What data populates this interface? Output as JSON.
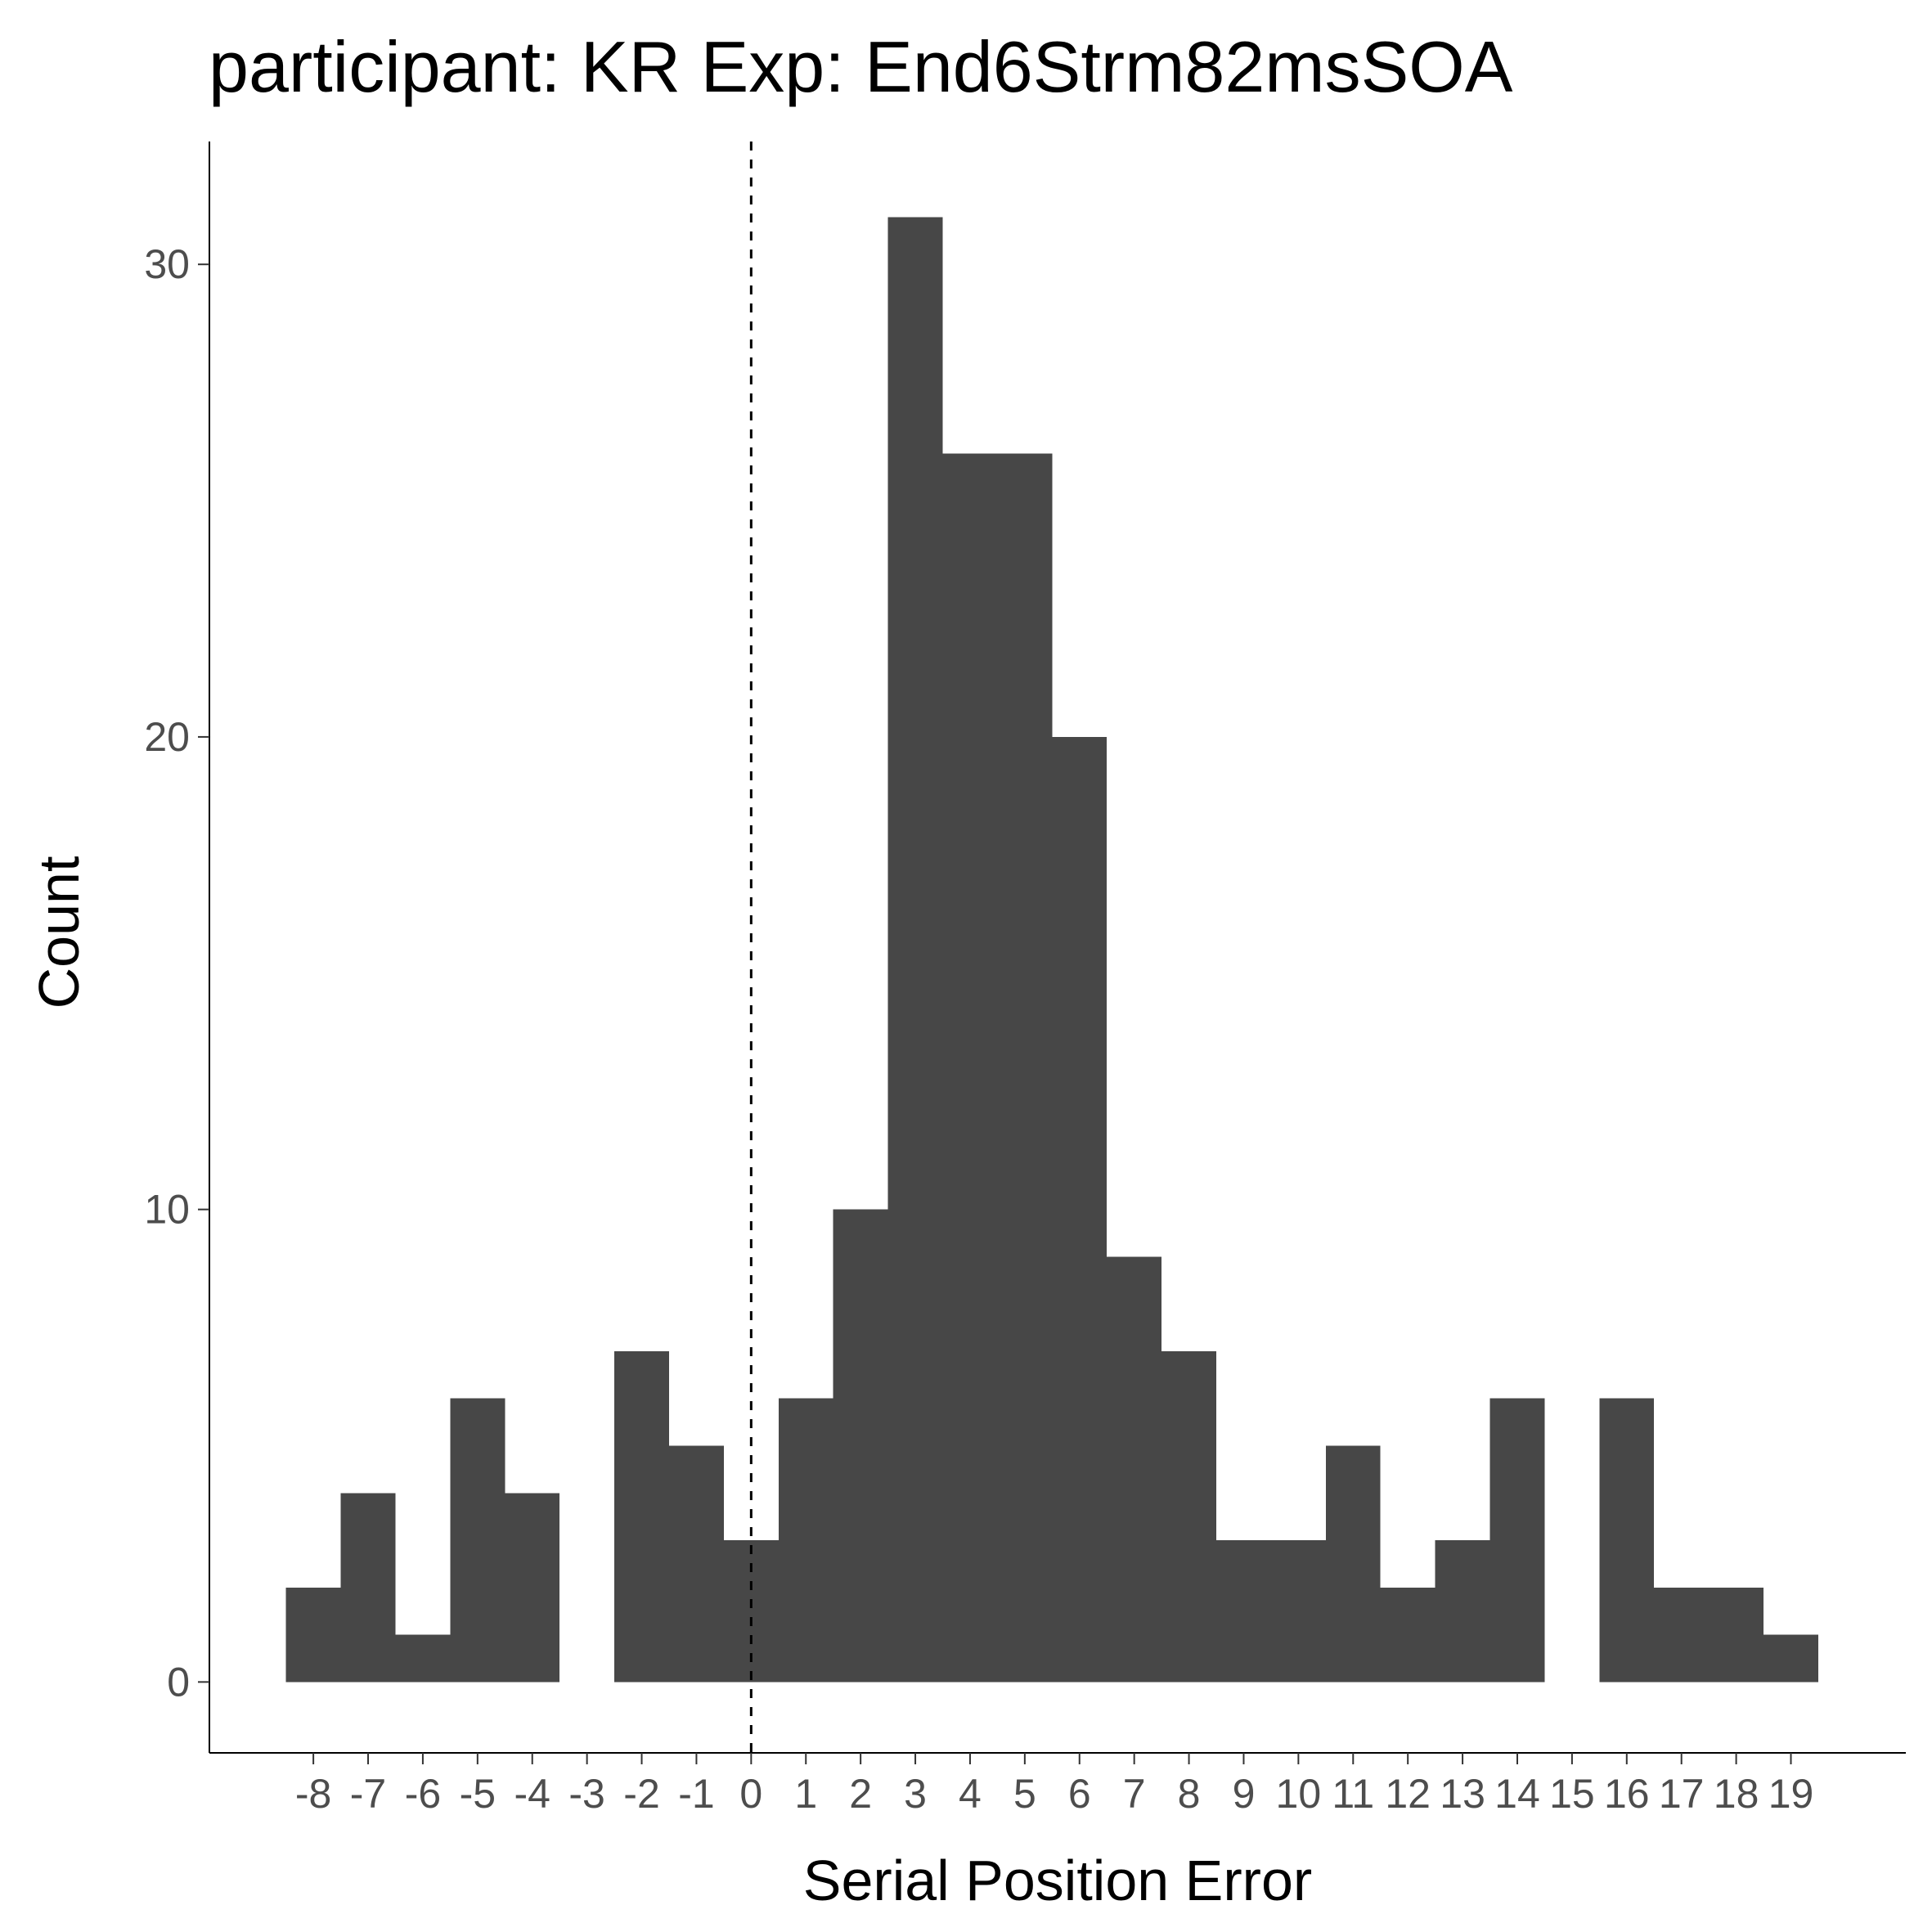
{
  "chart_data": {
    "type": "bar",
    "title": "participant: KR Exp: End6Strm82msSOA",
    "xlabel": "Serial Position Error",
    "ylabel": "Count",
    "x_tick_labels": [
      "-8",
      "-7",
      "-6",
      "-5",
      "-4",
      "-3",
      "-2",
      "-1",
      "0",
      "1",
      "2",
      "3",
      "4",
      "5",
      "6",
      "7",
      "8",
      "9",
      "10",
      "11",
      "12",
      "13",
      "14",
      "15",
      "16",
      "17",
      "18",
      "19"
    ],
    "y_tick_labels": [
      "0",
      "10",
      "20",
      "30"
    ],
    "categories": [
      -8,
      -7,
      -6,
      -5,
      -4,
      -3,
      -2,
      -1,
      0,
      1,
      2,
      3,
      4,
      5,
      6,
      7,
      8,
      9,
      10,
      11,
      12,
      13,
      14,
      15,
      16,
      17,
      18,
      19
    ],
    "values": [
      2,
      4,
      1,
      6,
      4,
      0,
      7,
      5,
      3,
      6,
      10,
      31,
      26,
      26,
      20,
      9,
      7,
      3,
      3,
      5,
      2,
      3,
      6,
      0,
      6,
      2,
      2,
      1
    ],
    "bin_offset": -0.5,
    "xlim": [
      -9.9,
      21.1
    ],
    "ylim": [
      -1.5,
      32.6
    ],
    "reference_line": {
      "x": 0,
      "style": "dashed"
    },
    "bar_color": "#474747",
    "grid": false,
    "legend": "none"
  }
}
